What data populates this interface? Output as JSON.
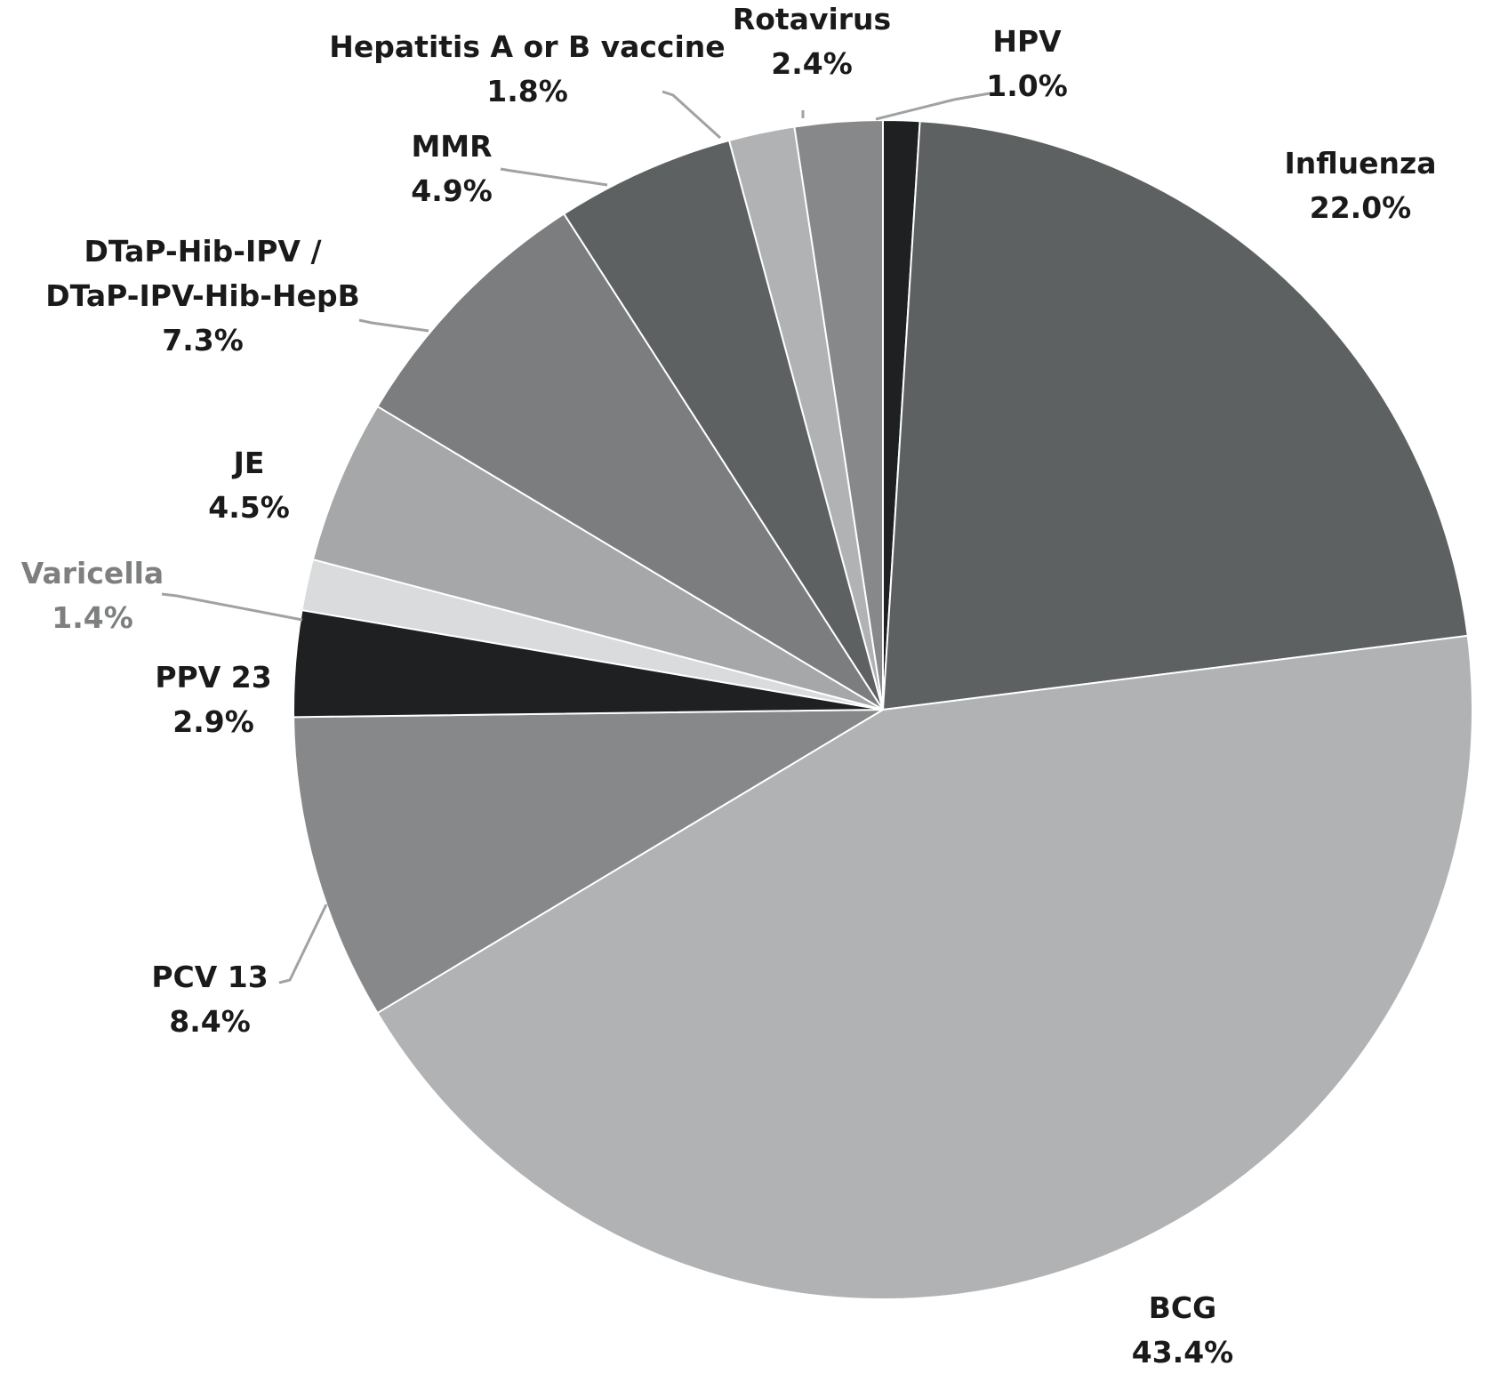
{
  "chart_data": {
    "type": "pie",
    "title": "",
    "slices": [
      {
        "label": "HPV",
        "value_text": "1.0%",
        "value": 1.0,
        "color": "#1e2021",
        "label_color": "#1a1a1a"
      },
      {
        "label": "Influenza",
        "value_text": "22.0%",
        "value": 22.0,
        "color": "#5e6162",
        "label_color": "#1a1a1a"
      },
      {
        "label": "BCG",
        "value_text": "43.4%",
        "value": 43.4,
        "color": "#b0b2b3",
        "label_color": "#1a1a1a"
      },
      {
        "label": "PCV 13",
        "value_text": "8.4%",
        "value": 8.4,
        "color": "#868889",
        "label_color": "#1a1a1a"
      },
      {
        "label": "PPV 23",
        "value_text": "2.9%",
        "value": 2.9,
        "color": "#1e2021",
        "label_color": "#1a1a1a"
      },
      {
        "label": "Varicella",
        "value_text": "1.4%",
        "value": 1.4,
        "color": "#d9dbdc",
        "label_color": "#7d7f80"
      },
      {
        "label": "JE",
        "value_text": "4.5%",
        "value": 4.5,
        "color": "#a5a7a8",
        "label_color": "#1a1a1a"
      },
      {
        "label": "DTaP-Hib-IPV / DTaP-IPV-Hib-HepB",
        "label_lines": [
          "DTaP-Hib-IPV /",
          "DTaP-IPV-Hib-HepB"
        ],
        "value_text": "7.3%",
        "value": 7.3,
        "color": "#7b7d7e",
        "label_color": "#1a1a1a"
      },
      {
        "label": "MMR",
        "value_text": "4.9%",
        "value": 4.9,
        "color": "#5e6162",
        "label_color": "#1a1a1a"
      },
      {
        "label": "Hepatitis A or B vaccine",
        "value_text": "1.8%",
        "value": 1.8,
        "color": "#b0b2b3",
        "label_color": "#1a1a1a"
      },
      {
        "label": "Rotavirus",
        "value_text": "2.4%",
        "value": 2.4,
        "color": "#868889",
        "label_color": "#1a1a1a"
      }
    ],
    "start_angle": "12 o'clock",
    "direction": "clockwise",
    "legend": "none (labels beside slices)"
  }
}
